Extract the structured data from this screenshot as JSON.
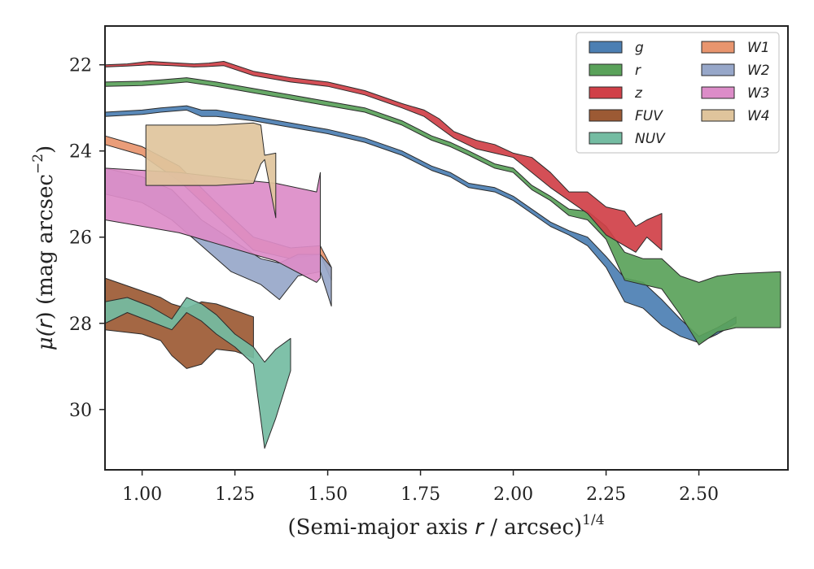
{
  "chart_data": {
    "type": "area",
    "title": "",
    "xlabel_parts": [
      "(Semi-major axis ",
      "r",
      " / arcsec)",
      "1/4"
    ],
    "ylabel_parts": [
      "μ(",
      "r",
      ") (mag arcsec",
      "−2",
      ")"
    ],
    "xlim": [
      0.9,
      2.74
    ],
    "ylim": [
      31.4,
      21.1
    ],
    "y_inverted": true,
    "xticks": [
      1.0,
      1.25,
      1.5,
      1.75,
      2.0,
      2.25,
      2.5
    ],
    "xtick_labels": [
      "1.00",
      "1.25",
      "1.50",
      "1.75",
      "2.00",
      "2.25",
      "2.50"
    ],
    "yticks": [
      22,
      24,
      26,
      28,
      30
    ],
    "ytick_labels": [
      "22",
      "24",
      "26",
      "28",
      "30"
    ],
    "legend": {
      "placement": "top-right",
      "columns": 2
    },
    "series": [
      {
        "name": "g",
        "color": "#4c7fb3",
        "x": [
          0.9,
          1.0,
          1.05,
          1.12,
          1.16,
          1.2,
          1.3,
          1.4,
          1.5,
          1.6,
          1.7,
          1.78,
          1.83,
          1.88,
          1.95,
          2.0,
          2.05,
          2.1,
          2.15,
          2.2,
          2.25,
          2.3,
          2.35,
          2.4,
          2.45,
          2.5,
          2.55,
          2.6
        ],
        "y_upper": [
          23.1,
          23.05,
          23.0,
          22.95,
          23.05,
          23.05,
          23.2,
          23.35,
          23.5,
          23.7,
          24.0,
          24.35,
          24.5,
          24.75,
          24.85,
          25.05,
          25.35,
          25.65,
          25.85,
          26.0,
          26.45,
          26.95,
          27.05,
          27.45,
          27.9,
          28.3,
          28.1,
          27.85
        ],
        "y_lower": [
          23.2,
          23.15,
          23.1,
          23.05,
          23.2,
          23.2,
          23.3,
          23.45,
          23.6,
          23.8,
          24.1,
          24.45,
          24.6,
          24.85,
          24.95,
          25.15,
          25.45,
          25.75,
          25.95,
          26.2,
          26.7,
          27.5,
          27.65,
          28.05,
          28.3,
          28.45,
          28.25,
          28.0
        ]
      },
      {
        "name": "r",
        "color": "#5aa25a",
        "x": [
          0.9,
          1.0,
          1.05,
          1.12,
          1.16,
          1.2,
          1.3,
          1.4,
          1.5,
          1.6,
          1.7,
          1.78,
          1.83,
          1.88,
          1.95,
          2.0,
          2.05,
          2.1,
          2.15,
          2.2,
          2.25,
          2.3,
          2.35,
          2.4,
          2.45,
          2.5,
          2.55,
          2.6,
          2.72
        ],
        "y_upper": [
          22.4,
          22.38,
          22.35,
          22.3,
          22.35,
          22.4,
          22.55,
          22.7,
          22.85,
          23.0,
          23.3,
          23.65,
          23.8,
          24.0,
          24.3,
          24.4,
          24.8,
          25.05,
          25.35,
          25.4,
          25.75,
          26.35,
          26.5,
          26.5,
          26.9,
          27.05,
          26.9,
          26.85,
          26.8
        ],
        "y_lower": [
          22.5,
          22.48,
          22.45,
          22.4,
          22.45,
          22.5,
          22.65,
          22.8,
          22.95,
          23.1,
          23.4,
          23.75,
          23.9,
          24.1,
          24.4,
          24.5,
          24.9,
          25.15,
          25.5,
          25.6,
          26.05,
          27.0,
          27.1,
          27.2,
          27.8,
          28.5,
          28.2,
          28.1,
          28.1
        ]
      },
      {
        "name": "z",
        "color": "#d04048",
        "x": [
          0.9,
          0.96,
          1.02,
          1.08,
          1.14,
          1.18,
          1.22,
          1.3,
          1.4,
          1.5,
          1.6,
          1.7,
          1.76,
          1.8,
          1.84,
          1.9,
          1.95,
          2.0,
          2.05,
          2.1,
          2.15,
          2.2,
          2.25,
          2.3,
          2.33,
          2.36,
          2.4
        ],
        "y_upper": [
          22.0,
          21.98,
          21.92,
          21.95,
          21.98,
          21.96,
          21.92,
          22.15,
          22.3,
          22.4,
          22.6,
          22.9,
          23.05,
          23.25,
          23.55,
          23.75,
          23.85,
          24.05,
          24.15,
          24.5,
          24.95,
          24.95,
          25.3,
          25.4,
          25.75,
          25.6,
          25.45
        ],
        "y_lower": [
          22.05,
          22.03,
          22.0,
          22.02,
          22.05,
          22.04,
          22.02,
          22.25,
          22.4,
          22.5,
          22.7,
          23.0,
          23.2,
          23.45,
          23.7,
          23.95,
          24.05,
          24.15,
          24.5,
          24.85,
          25.15,
          25.45,
          25.95,
          26.2,
          26.35,
          26.0,
          26.3
        ]
      },
      {
        "name": "FUV",
        "color": "#9c5a34",
        "x": [
          0.9,
          1.0,
          1.05,
          1.08,
          1.12,
          1.16,
          1.2,
          1.25,
          1.3
        ],
        "y_upper": [
          26.95,
          27.25,
          27.4,
          27.55,
          27.65,
          27.5,
          27.55,
          27.7,
          27.85
        ],
        "y_lower": [
          28.15,
          28.25,
          28.4,
          28.75,
          29.05,
          28.95,
          28.6,
          28.65,
          28.8
        ]
      },
      {
        "name": "NUV",
        "color": "#74bca2",
        "x": [
          0.9,
          0.96,
          1.02,
          1.08,
          1.12,
          1.16,
          1.2,
          1.25,
          1.3,
          1.33,
          1.36,
          1.4
        ],
        "y_upper": [
          27.5,
          27.4,
          27.6,
          27.9,
          27.4,
          27.55,
          27.8,
          28.25,
          28.55,
          28.9,
          28.6,
          28.35
        ],
        "y_lower": [
          28.0,
          27.75,
          27.95,
          28.15,
          27.75,
          27.95,
          28.25,
          28.55,
          28.95,
          30.9,
          30.2,
          29.1
        ]
      },
      {
        "name": "W1",
        "color": "#e8956e",
        "x": [
          0.9,
          1.0,
          1.1,
          1.2,
          1.3,
          1.4,
          1.48,
          1.51
        ],
        "y_upper": [
          23.65,
          23.9,
          24.35,
          25.2,
          26.0,
          26.25,
          26.2,
          26.7
        ],
        "y_lower": [
          23.85,
          24.1,
          24.7,
          25.5,
          26.3,
          26.5,
          26.4,
          27.0
        ]
      },
      {
        "name": "W2",
        "color": "#97a7c9",
        "x": [
          0.9,
          1.0,
          1.08,
          1.16,
          1.24,
          1.32,
          1.37,
          1.42,
          1.48,
          1.51
        ],
        "y_upper": [
          24.4,
          24.6,
          24.9,
          25.6,
          26.05,
          26.5,
          26.6,
          26.4,
          26.4,
          26.7
        ],
        "y_lower": [
          25.0,
          25.2,
          25.6,
          26.2,
          26.8,
          27.1,
          27.45,
          26.9,
          26.8,
          27.6
        ]
      },
      {
        "name": "W3",
        "color": "#dc8cc8",
        "x": [
          0.9,
          1.1,
          1.3,
          1.36,
          1.47,
          1.48
        ],
        "y_upper": [
          24.4,
          24.5,
          24.7,
          24.75,
          24.95,
          24.5
        ],
        "y_lower": [
          25.6,
          25.9,
          26.4,
          26.55,
          27.05,
          26.95
        ]
      },
      {
        "name": "W4",
        "color": "#dfc49c",
        "x": [
          1.01,
          1.1,
          1.2,
          1.3,
          1.32,
          1.33,
          1.36
        ],
        "y_upper": [
          23.4,
          23.4,
          23.4,
          23.35,
          23.4,
          24.1,
          24.05
        ],
        "y_lower": [
          24.8,
          24.8,
          24.8,
          24.75,
          24.3,
          24.2,
          25.55
        ]
      }
    ]
  }
}
